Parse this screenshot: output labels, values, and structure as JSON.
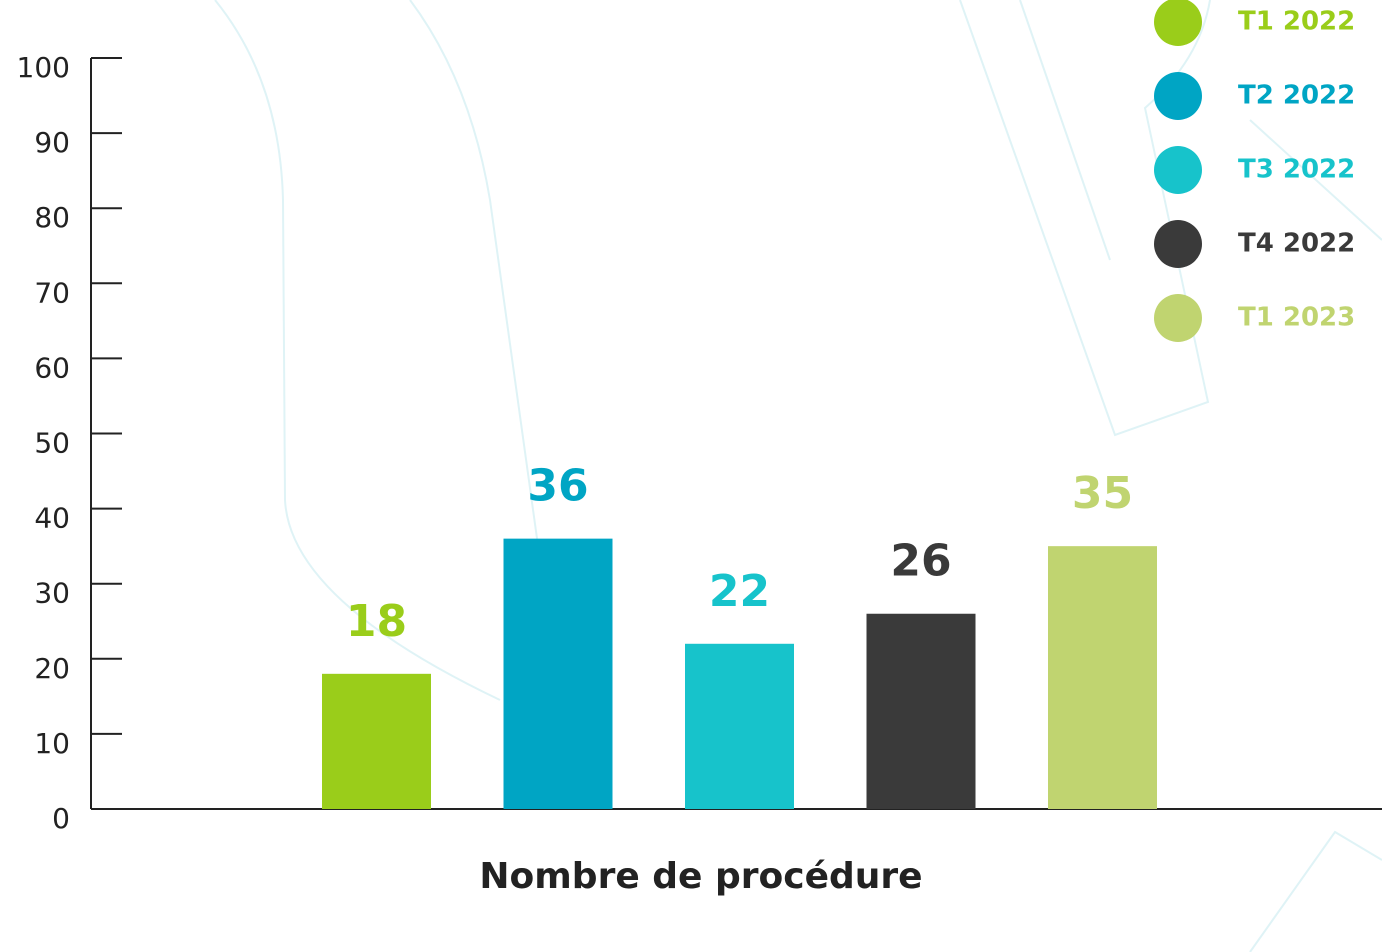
{
  "chart_data": {
    "type": "bar",
    "categories": [
      "Nombre de procédure"
    ],
    "series": [
      {
        "name": "T1 2022",
        "color": "#9acd1a",
        "values": [
          18
        ]
      },
      {
        "name": "T2 2022",
        "color": "#00a5c4",
        "values": [
          36
        ]
      },
      {
        "name": "T3 2022",
        "color": "#17c3cb",
        "values": [
          22
        ]
      },
      {
        "name": "T4 2022",
        "color": "#3a3a3a",
        "values": [
          26
        ]
      },
      {
        "name": "T1 2023",
        "color": "#c0d470",
        "values": [
          35
        ]
      }
    ],
    "ylim": [
      0,
      100
    ],
    "yticks": [
      0,
      10,
      20,
      30,
      40,
      50,
      60,
      70,
      80,
      90,
      100
    ],
    "legend": "top-right"
  }
}
